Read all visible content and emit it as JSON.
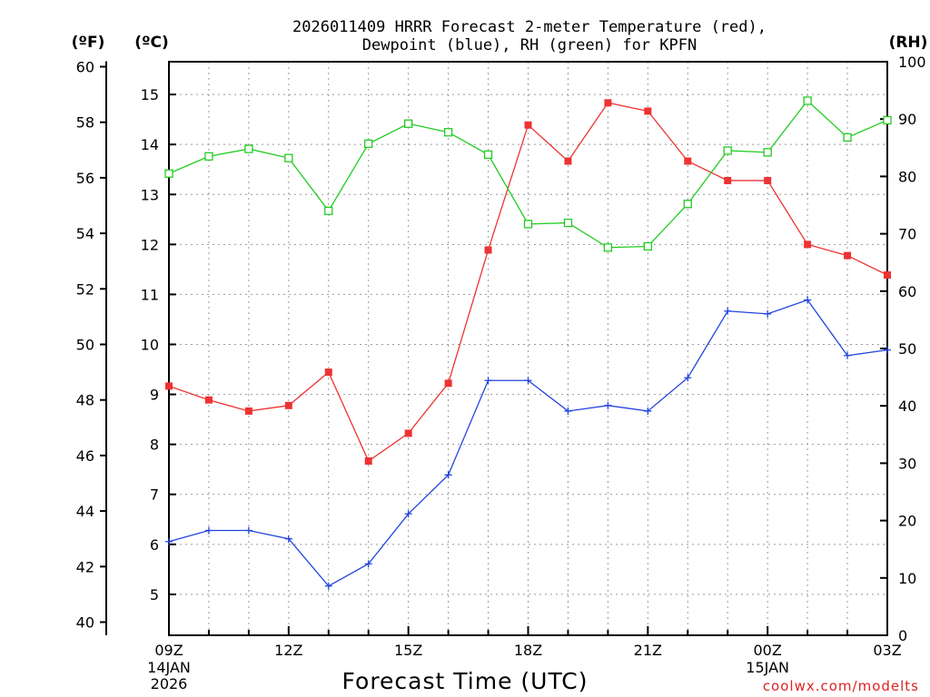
{
  "title_lines": [
    "2026011409 HRRR Forecast 2-meter Temperature (red),",
    "Dewpoint (blue), RH (green) for KPFN"
  ],
  "credit": "coolwx.com/modelts",
  "colors": {
    "temperature": "#ee3333",
    "dewpoint": "#2244dd",
    "rh": "#22cc22",
    "credit": "#dd2222",
    "grid": "#999999"
  },
  "chart_data": {
    "type": "line",
    "title": "2026011409 HRRR Forecast 2-meter Temperature (red), Dewpoint (blue), RH (green) for KPFN",
    "xlabel": "Forecast Time (UTC)",
    "x": [
      "09Z",
      "10Z",
      "11Z",
      "12Z",
      "13Z",
      "14Z",
      "15Z",
      "16Z",
      "17Z",
      "18Z",
      "19Z",
      "20Z",
      "21Z",
      "22Z",
      "23Z",
      "00Z",
      "01Z",
      "02Z",
      "03Z"
    ],
    "x_ticks": [
      {
        "label": "09Z",
        "sub": [
          "14JAN",
          "2026"
        ]
      },
      {
        "label": "12Z",
        "sub": []
      },
      {
        "label": "15Z",
        "sub": []
      },
      {
        "label": "18Z",
        "sub": []
      },
      {
        "label": "21Z",
        "sub": []
      },
      {
        "label": "00Z",
        "sub": [
          "15JAN"
        ]
      },
      {
        "label": "03Z",
        "sub": []
      }
    ],
    "axes": {
      "fahrenheit": {
        "label": "(ºF)",
        "range": [
          40,
          60
        ],
        "ticks": [
          40,
          42,
          44,
          46,
          48,
          50,
          52,
          54,
          56,
          58,
          60
        ]
      },
      "celsius": {
        "label": "(ºC)",
        "range": [
          4.44,
          15.56
        ],
        "ticks": [
          5,
          6,
          7,
          8,
          9,
          10,
          11,
          12,
          13,
          14,
          15
        ]
      },
      "rh": {
        "label": "(RH)",
        "range": [
          0,
          100
        ],
        "ticks": [
          0,
          10,
          20,
          30,
          40,
          50,
          60,
          70,
          80,
          90,
          100
        ]
      }
    },
    "grid": true,
    "series": [
      {
        "key": "temperature",
        "axis": "fahrenheit",
        "marker": "filled-square",
        "values": [
          48.5,
          48.0,
          47.6,
          47.8,
          49.0,
          45.8,
          46.8,
          48.6,
          53.4,
          57.9,
          56.6,
          58.7,
          58.4,
          56.6,
          55.9,
          55.9,
          53.6,
          53.2,
          52.5
        ]
      },
      {
        "key": "dewpoint",
        "axis": "fahrenheit",
        "marker": "plus",
        "values": [
          42.9,
          43.3,
          43.3,
          43.0,
          41.3,
          42.1,
          43.9,
          45.3,
          48.7,
          48.7,
          47.6,
          47.8,
          47.6,
          48.8,
          51.2,
          51.1,
          51.6,
          49.6,
          49.8
        ]
      },
      {
        "key": "rh",
        "axis": "rh",
        "marker": "open-square",
        "values": [
          80.5,
          83.5,
          84.8,
          83.2,
          74.0,
          85.7,
          89.2,
          87.7,
          83.8,
          71.7,
          71.9,
          67.6,
          67.8,
          75.2,
          84.5,
          84.2,
          93.2,
          86.8,
          89.8
        ]
      }
    ]
  }
}
